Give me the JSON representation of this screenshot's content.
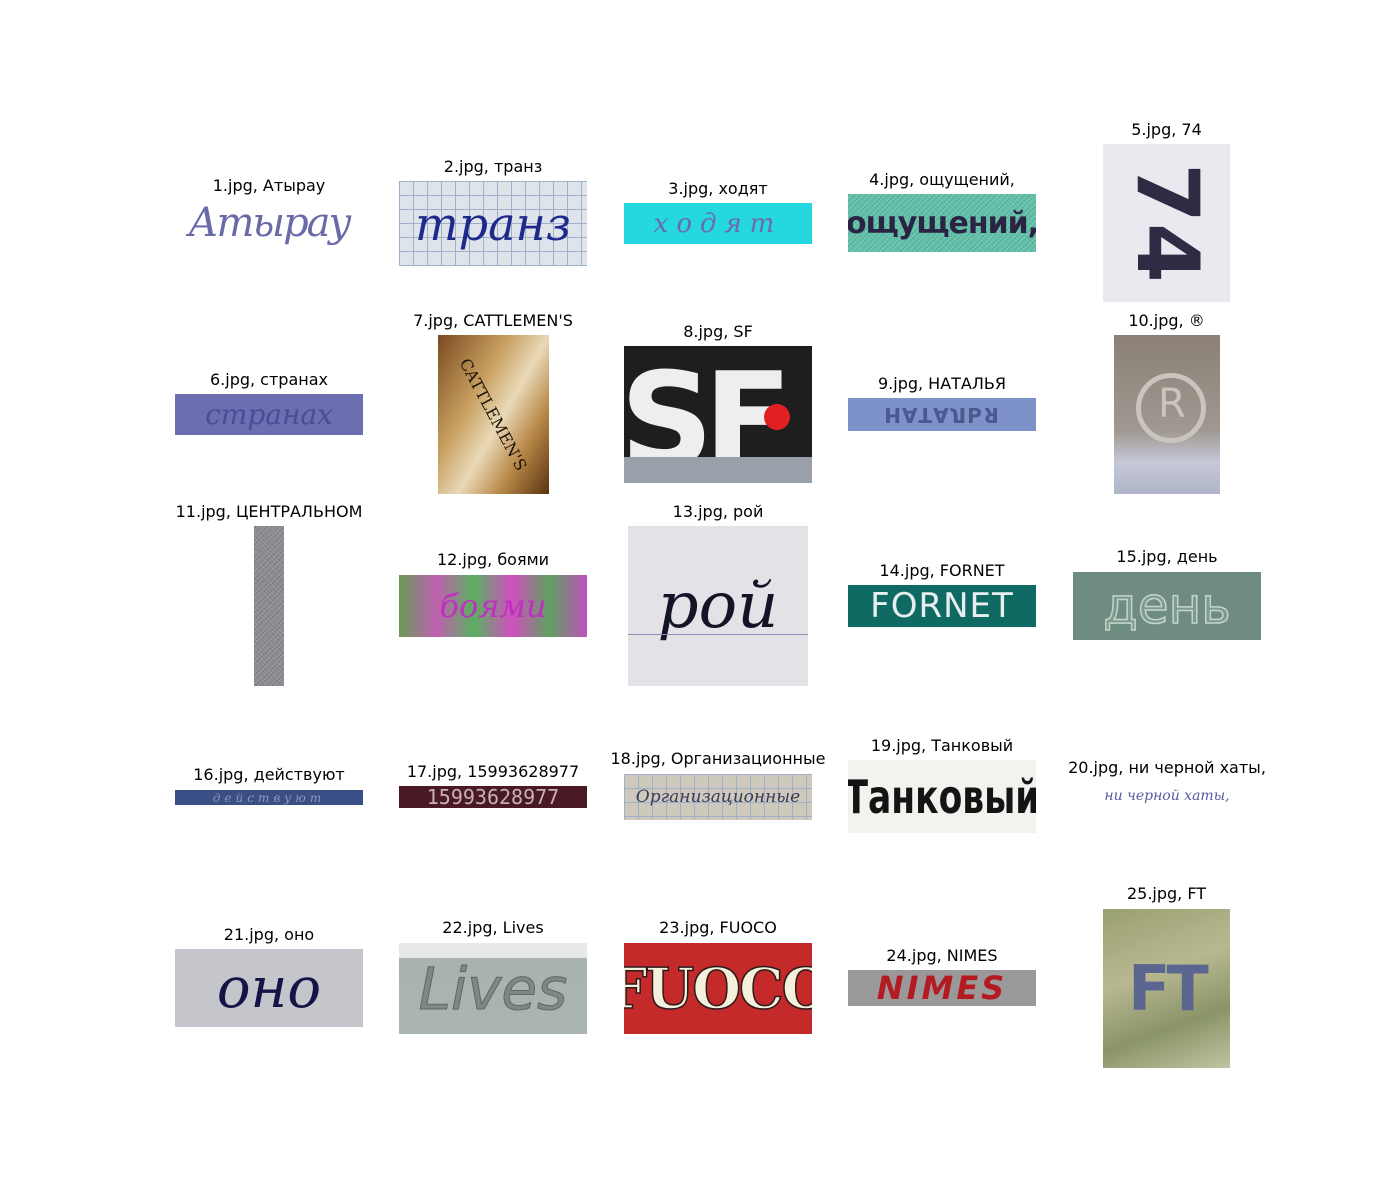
{
  "samples": [
    {
      "caption": "1.jpg, Атырау"
    },
    {
      "caption": "2.jpg, транз"
    },
    {
      "caption": "3.jpg, ходят"
    },
    {
      "caption": "4.jpg, ощущений,"
    },
    {
      "caption": "5.jpg, 74"
    },
    {
      "caption": "6.jpg, странах"
    },
    {
      "caption": "7.jpg, CATTLEMEN'S"
    },
    {
      "caption": "8.jpg, SF"
    },
    {
      "caption": "9.jpg, НАТАЛЬЯ"
    },
    {
      "caption": "10.jpg, ®"
    },
    {
      "caption": "11.jpg, ЦЕНТРАЛЬНОМ"
    },
    {
      "caption": "12.jpg, боями"
    },
    {
      "caption": "13.jpg, рой"
    },
    {
      "caption": "14.jpg, FORNET"
    },
    {
      "caption": "15.jpg, день"
    },
    {
      "caption": "16.jpg, действуют"
    },
    {
      "caption": "17.jpg, 15993628977"
    },
    {
      "caption": "18.jpg, Организационные"
    },
    {
      "caption": "19.jpg, Танковый"
    },
    {
      "caption": "20.jpg, ни черной хаты,"
    },
    {
      "caption": "21.jpg, оно"
    },
    {
      "caption": "22.jpg, Lives"
    },
    {
      "caption": "23.jpg, FUOCO"
    },
    {
      "caption": "24.jpg, NIMES"
    },
    {
      "caption": "25.jpg, FT"
    }
  ]
}
